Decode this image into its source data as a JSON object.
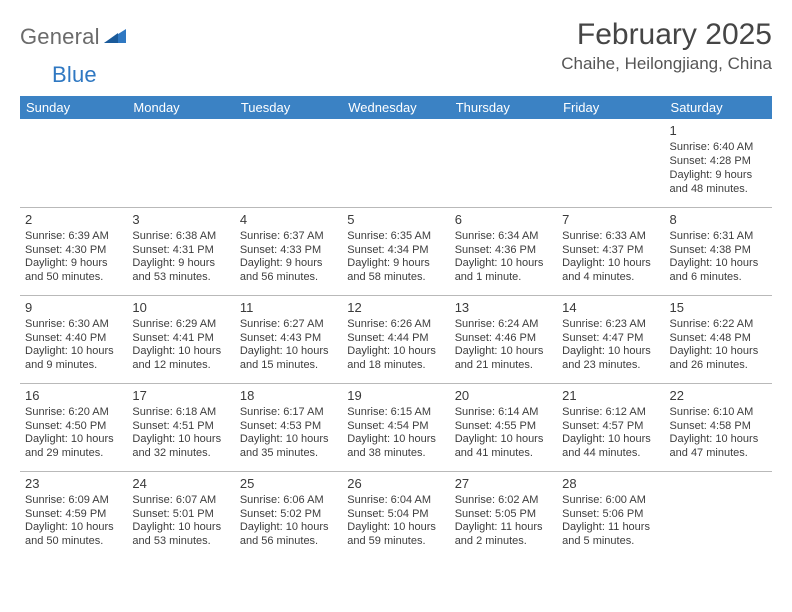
{
  "logo": {
    "text1": "General",
    "text2": "Blue"
  },
  "title": "February 2025",
  "location": "Chaihe, Heilongjiang, China",
  "colors": {
    "header_bg": "#3b82c4",
    "header_text": "#ffffff",
    "border": "#b9b9b9",
    "text": "#3a3a3a",
    "logo_gray": "#6b6b6b",
    "logo_blue": "#2f78c2"
  },
  "weekdays": [
    "Sunday",
    "Monday",
    "Tuesday",
    "Wednesday",
    "Thursday",
    "Friday",
    "Saturday"
  ],
  "weeks": [
    [
      null,
      null,
      null,
      null,
      null,
      null,
      {
        "n": "1",
        "sunrise": "Sunrise: 6:40 AM",
        "sunset": "Sunset: 4:28 PM",
        "daylight": "Daylight: 9 hours and 48 minutes."
      }
    ],
    [
      {
        "n": "2",
        "sunrise": "Sunrise: 6:39 AM",
        "sunset": "Sunset: 4:30 PM",
        "daylight": "Daylight: 9 hours and 50 minutes."
      },
      {
        "n": "3",
        "sunrise": "Sunrise: 6:38 AM",
        "sunset": "Sunset: 4:31 PM",
        "daylight": "Daylight: 9 hours and 53 minutes."
      },
      {
        "n": "4",
        "sunrise": "Sunrise: 6:37 AM",
        "sunset": "Sunset: 4:33 PM",
        "daylight": "Daylight: 9 hours and 56 minutes."
      },
      {
        "n": "5",
        "sunrise": "Sunrise: 6:35 AM",
        "sunset": "Sunset: 4:34 PM",
        "daylight": "Daylight: 9 hours and 58 minutes."
      },
      {
        "n": "6",
        "sunrise": "Sunrise: 6:34 AM",
        "sunset": "Sunset: 4:36 PM",
        "daylight": "Daylight: 10 hours and 1 minute."
      },
      {
        "n": "7",
        "sunrise": "Sunrise: 6:33 AM",
        "sunset": "Sunset: 4:37 PM",
        "daylight": "Daylight: 10 hours and 4 minutes."
      },
      {
        "n": "8",
        "sunrise": "Sunrise: 6:31 AM",
        "sunset": "Sunset: 4:38 PM",
        "daylight": "Daylight: 10 hours and 6 minutes."
      }
    ],
    [
      {
        "n": "9",
        "sunrise": "Sunrise: 6:30 AM",
        "sunset": "Sunset: 4:40 PM",
        "daylight": "Daylight: 10 hours and 9 minutes."
      },
      {
        "n": "10",
        "sunrise": "Sunrise: 6:29 AM",
        "sunset": "Sunset: 4:41 PM",
        "daylight": "Daylight: 10 hours and 12 minutes."
      },
      {
        "n": "11",
        "sunrise": "Sunrise: 6:27 AM",
        "sunset": "Sunset: 4:43 PM",
        "daylight": "Daylight: 10 hours and 15 minutes."
      },
      {
        "n": "12",
        "sunrise": "Sunrise: 6:26 AM",
        "sunset": "Sunset: 4:44 PM",
        "daylight": "Daylight: 10 hours and 18 minutes."
      },
      {
        "n": "13",
        "sunrise": "Sunrise: 6:24 AM",
        "sunset": "Sunset: 4:46 PM",
        "daylight": "Daylight: 10 hours and 21 minutes."
      },
      {
        "n": "14",
        "sunrise": "Sunrise: 6:23 AM",
        "sunset": "Sunset: 4:47 PM",
        "daylight": "Daylight: 10 hours and 23 minutes."
      },
      {
        "n": "15",
        "sunrise": "Sunrise: 6:22 AM",
        "sunset": "Sunset: 4:48 PM",
        "daylight": "Daylight: 10 hours and 26 minutes."
      }
    ],
    [
      {
        "n": "16",
        "sunrise": "Sunrise: 6:20 AM",
        "sunset": "Sunset: 4:50 PM",
        "daylight": "Daylight: 10 hours and 29 minutes."
      },
      {
        "n": "17",
        "sunrise": "Sunrise: 6:18 AM",
        "sunset": "Sunset: 4:51 PM",
        "daylight": "Daylight: 10 hours and 32 minutes."
      },
      {
        "n": "18",
        "sunrise": "Sunrise: 6:17 AM",
        "sunset": "Sunset: 4:53 PM",
        "daylight": "Daylight: 10 hours and 35 minutes."
      },
      {
        "n": "19",
        "sunrise": "Sunrise: 6:15 AM",
        "sunset": "Sunset: 4:54 PM",
        "daylight": "Daylight: 10 hours and 38 minutes."
      },
      {
        "n": "20",
        "sunrise": "Sunrise: 6:14 AM",
        "sunset": "Sunset: 4:55 PM",
        "daylight": "Daylight: 10 hours and 41 minutes."
      },
      {
        "n": "21",
        "sunrise": "Sunrise: 6:12 AM",
        "sunset": "Sunset: 4:57 PM",
        "daylight": "Daylight: 10 hours and 44 minutes."
      },
      {
        "n": "22",
        "sunrise": "Sunrise: 6:10 AM",
        "sunset": "Sunset: 4:58 PM",
        "daylight": "Daylight: 10 hours and 47 minutes."
      }
    ],
    [
      {
        "n": "23",
        "sunrise": "Sunrise: 6:09 AM",
        "sunset": "Sunset: 4:59 PM",
        "daylight": "Daylight: 10 hours and 50 minutes."
      },
      {
        "n": "24",
        "sunrise": "Sunrise: 6:07 AM",
        "sunset": "Sunset: 5:01 PM",
        "daylight": "Daylight: 10 hours and 53 minutes."
      },
      {
        "n": "25",
        "sunrise": "Sunrise: 6:06 AM",
        "sunset": "Sunset: 5:02 PM",
        "daylight": "Daylight: 10 hours and 56 minutes."
      },
      {
        "n": "26",
        "sunrise": "Sunrise: 6:04 AM",
        "sunset": "Sunset: 5:04 PM",
        "daylight": "Daylight: 10 hours and 59 minutes."
      },
      {
        "n": "27",
        "sunrise": "Sunrise: 6:02 AM",
        "sunset": "Sunset: 5:05 PM",
        "daylight": "Daylight: 11 hours and 2 minutes."
      },
      {
        "n": "28",
        "sunrise": "Sunrise: 6:00 AM",
        "sunset": "Sunset: 5:06 PM",
        "daylight": "Daylight: 11 hours and 5 minutes."
      },
      null
    ]
  ]
}
